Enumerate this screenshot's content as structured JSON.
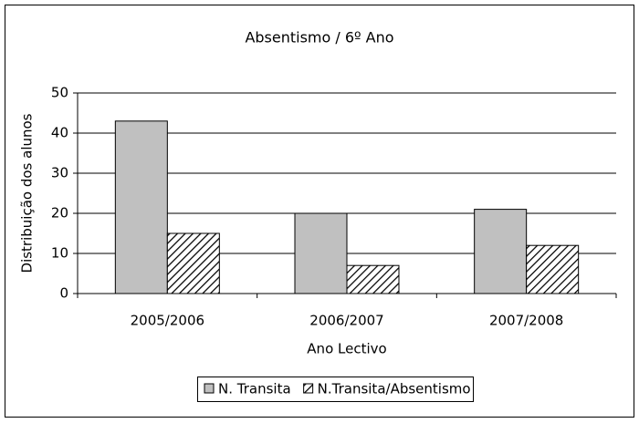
{
  "chart_data": {
    "type": "bar",
    "title": "Absentismo / 6º Ano",
    "x_label": "Ano Lectivo",
    "y_label": "Distribuição dos alunos",
    "categories": [
      "2005/2006",
      "2006/2007",
      "2007/2008"
    ],
    "series": [
      {
        "name": "N. Transita",
        "color": "#c0c0c0",
        "values": [
          43,
          20,
          21
        ]
      },
      {
        "name": "N.Transita/Absentismo",
        "color": "#ffffff",
        "hatch": true,
        "values": [
          15,
          7,
          12
        ]
      }
    ],
    "ylim": [
      0,
      50
    ],
    "yticks": [
      0,
      10,
      20,
      30,
      40,
      50
    ],
    "grid": true,
    "legend": "bottom"
  }
}
